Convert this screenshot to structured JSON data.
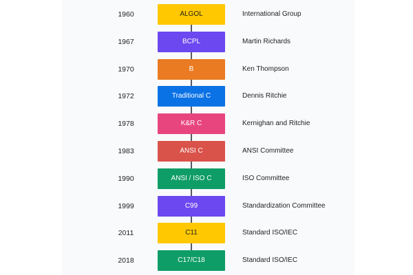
{
  "timeline": {
    "entries": [
      {
        "year": "1960",
        "language": "ALGOL",
        "author": "International Group",
        "color": "#ffc800",
        "text_color": "#222222"
      },
      {
        "year": "1967",
        "language": "BCPL",
        "author": "Martin Richards",
        "color": "#6b48f0",
        "text_color": "#ffffff"
      },
      {
        "year": "1970",
        "language": "B",
        "author": "Ken Thompson",
        "color": "#ea7b22",
        "text_color": "#ffffff"
      },
      {
        "year": "1972",
        "language": "Traditional C",
        "author": "Dennis Ritchie",
        "color": "#0b72e6",
        "text_color": "#ffffff"
      },
      {
        "year": "1978",
        "language": "K&R C",
        "author": "Kernighan and Ritchie",
        "color": "#e8457e",
        "text_color": "#ffffff"
      },
      {
        "year": "1983",
        "language": "ANSI C",
        "author": "ANSI Committee",
        "color": "#d9534a",
        "text_color": "#ffffff"
      },
      {
        "year": "1990",
        "language": "ANSI / ISO C",
        "author": "ISO Committee",
        "color": "#0f9d67",
        "text_color": "#ffffff"
      },
      {
        "year": "1999",
        "language": "C99",
        "author": "Standardization Committee",
        "color": "#6b48f0",
        "text_color": "#ffffff"
      },
      {
        "year": "2011",
        "language": "C11",
        "author": "Standard ISO/IEC",
        "color": "#ffc800",
        "text_color": "#222222"
      },
      {
        "year": "2018",
        "language": "C17/C18",
        "author": "Standard ISO/IEC",
        "color": "#0f9d67",
        "text_color": "#ffffff"
      }
    ]
  }
}
